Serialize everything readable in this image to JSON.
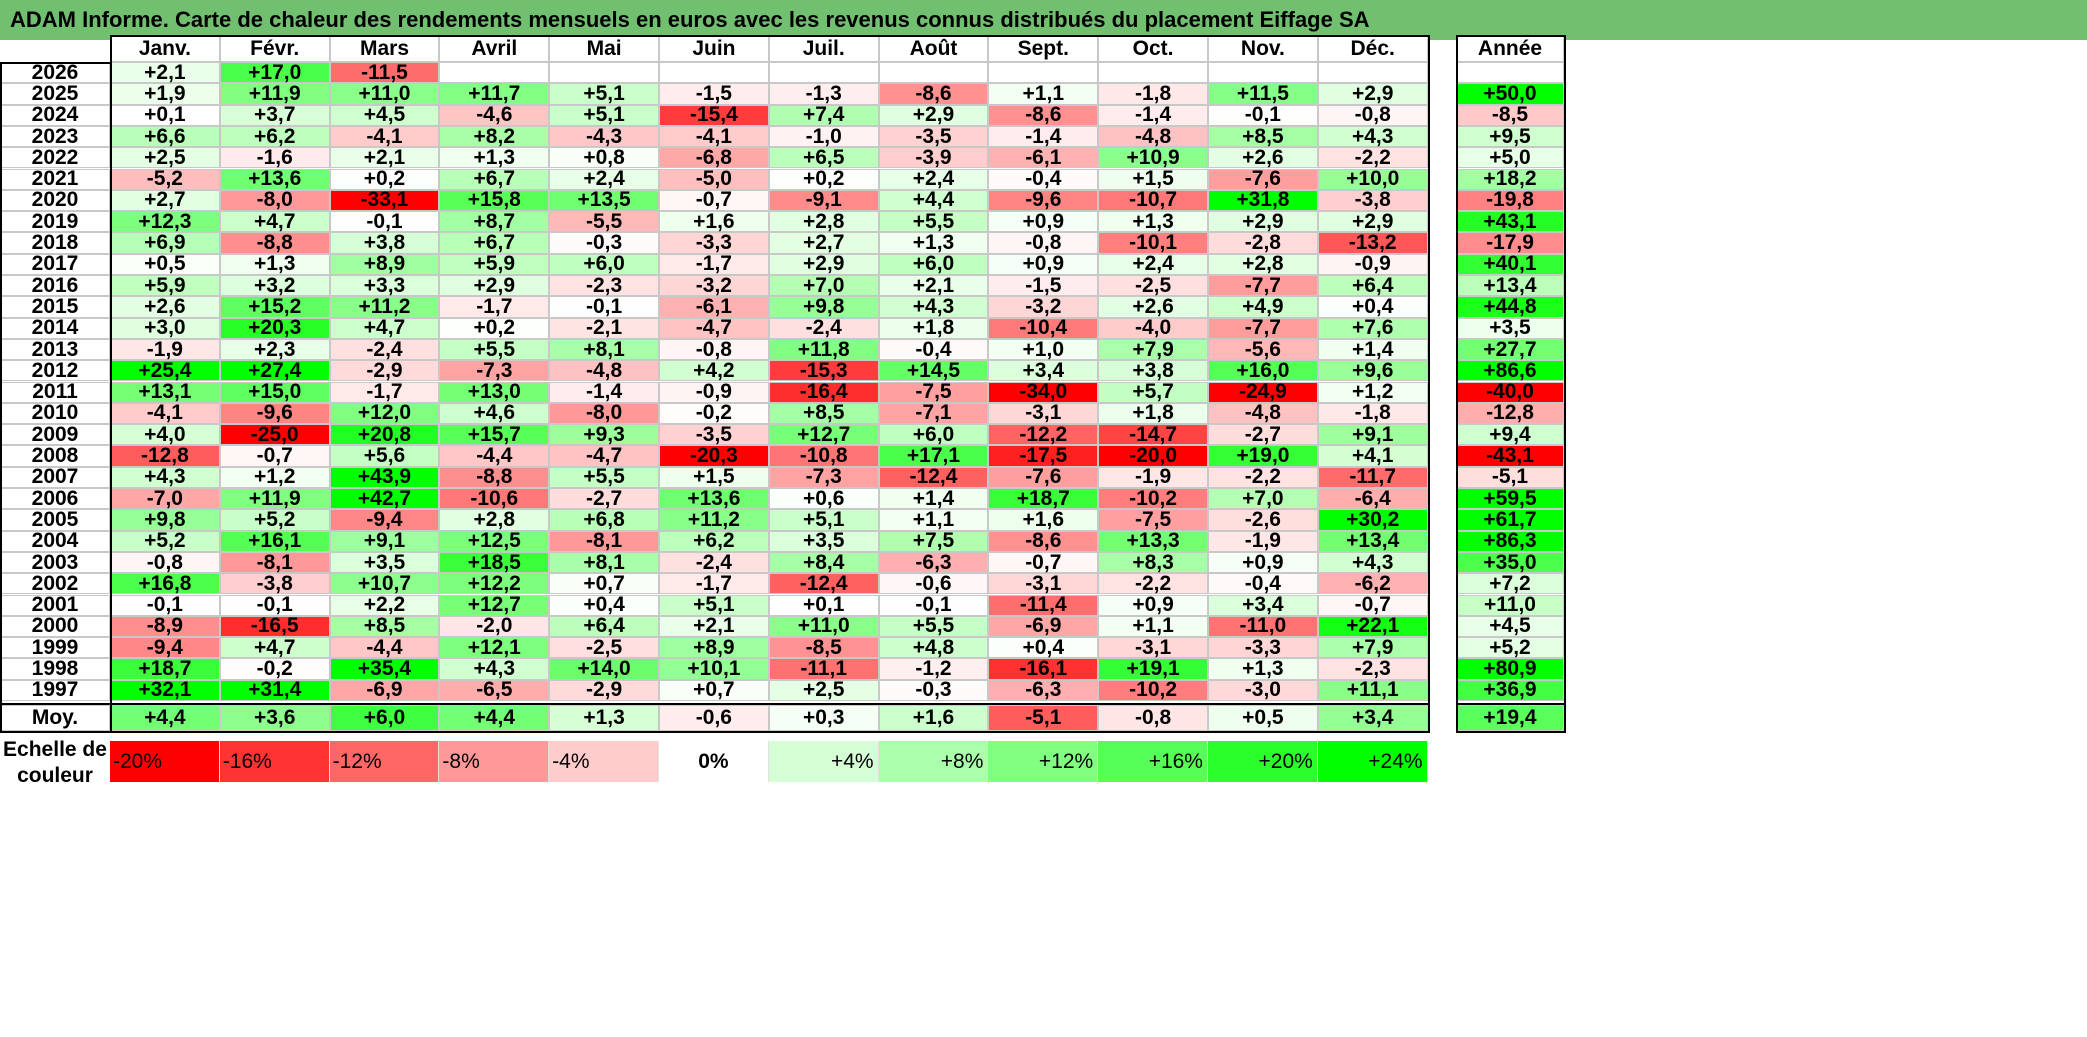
{
  "title": "ADAM Informe. Carte de chaleur des rendements mensuels en euros avec les revenus connus distribués du placement Eiffage SA",
  "chart_data": {
    "type": "heatmap",
    "title": "ADAM Informe. Carte de chaleur des rendements mensuels en euros avec les revenus connus distribués du placement Eiffage SA",
    "columns": [
      "Janv.",
      "Févr.",
      "Mars",
      "Avril",
      "Mai",
      "Juin",
      "Juil.",
      "Août",
      "Sept.",
      "Oct.",
      "Nov.",
      "Déc."
    ],
    "year_column_label": "Année",
    "rows": [
      {
        "year": "2026",
        "months": [
          "+2,1",
          "+17,0",
          "-11,5",
          "",
          "",
          "",
          "",
          "",
          "",
          "",
          "",
          ""
        ],
        "annual": ""
      },
      {
        "year": "2025",
        "months": [
          "+1,9",
          "+11,9",
          "+11,0",
          "+11,7",
          "+5,1",
          "-1,5",
          "-1,3",
          "-8,6",
          "+1,1",
          "-1,8",
          "+11,5",
          "+2,9"
        ],
        "annual": "+50,0"
      },
      {
        "year": "2024",
        "months": [
          "+0,1",
          "+3,7",
          "+4,5",
          "-4,6",
          "+5,1",
          "-15,4",
          "+7,4",
          "+2,9",
          "-8,6",
          "-1,4",
          "-0,1",
          "-0,8"
        ],
        "annual": "-8,5"
      },
      {
        "year": "2023",
        "months": [
          "+6,6",
          "+6,2",
          "-4,1",
          "+8,2",
          "-4,3",
          "-4,1",
          "-1,0",
          "-3,5",
          "-1,4",
          "-4,8",
          "+8,5",
          "+4,3"
        ],
        "annual": "+9,5"
      },
      {
        "year": "2022",
        "months": [
          "+2,5",
          "-1,6",
          "+2,1",
          "+1,3",
          "+0,8",
          "-6,8",
          "+6,5",
          "-3,9",
          "-6,1",
          "+10,9",
          "+2,6",
          "-2,2"
        ],
        "annual": "+5,0"
      },
      {
        "year": "2021",
        "months": [
          "-5,2",
          "+13,6",
          "+0,2",
          "+6,7",
          "+2,4",
          "-5,0",
          "+0,2",
          "+2,4",
          "-0,4",
          "+1,5",
          "-7,6",
          "+10,0"
        ],
        "annual": "+18,2"
      },
      {
        "year": "2020",
        "months": [
          "+2,7",
          "-8,0",
          "-33,1",
          "+15,8",
          "+13,5",
          "-0,7",
          "-9,1",
          "+4,4",
          "-9,6",
          "-10,7",
          "+31,8",
          "-3,8"
        ],
        "annual": "-19,8"
      },
      {
        "year": "2019",
        "months": [
          "+12,3",
          "+4,7",
          "-0,1",
          "+8,7",
          "-5,5",
          "+1,6",
          "+2,8",
          "+5,5",
          "+0,9",
          "+1,3",
          "+2,9",
          "+2,9"
        ],
        "annual": "+43,1"
      },
      {
        "year": "2018",
        "months": [
          "+6,9",
          "-8,8",
          "+3,8",
          "+6,7",
          "-0,3",
          "-3,3",
          "+2,7",
          "+1,3",
          "-0,8",
          "-10,1",
          "-2,8",
          "-13,2"
        ],
        "annual": "-17,9"
      },
      {
        "year": "2017",
        "months": [
          "+0,5",
          "+1,3",
          "+8,9",
          "+5,9",
          "+6,0",
          "-1,7",
          "+2,9",
          "+6,0",
          "+0,9",
          "+2,4",
          "+2,8",
          "-0,9"
        ],
        "annual": "+40,1"
      },
      {
        "year": "2016",
        "months": [
          "+5,9",
          "+3,2",
          "+3,3",
          "+2,9",
          "-2,3",
          "-3,2",
          "+7,0",
          "+2,1",
          "-1,5",
          "-2,5",
          "-7,7",
          "+6,4"
        ],
        "annual": "+13,4"
      },
      {
        "year": "2015",
        "months": [
          "+2,6",
          "+15,2",
          "+11,2",
          "-1,7",
          "-0,1",
          "-6,1",
          "+9,8",
          "+4,3",
          "-3,2",
          "+2,6",
          "+4,9",
          "+0,4"
        ],
        "annual": "+44,8"
      },
      {
        "year": "2014",
        "months": [
          "+3,0",
          "+20,3",
          "+4,7",
          "+0,2",
          "-2,1",
          "-4,7",
          "-2,4",
          "+1,8",
          "-10,4",
          "-4,0",
          "-7,7",
          "+7,6"
        ],
        "annual": "+3,5"
      },
      {
        "year": "2013",
        "months": [
          "-1,9",
          "+2,3",
          "-2,4",
          "+5,5",
          "+8,1",
          "-0,8",
          "+11,8",
          "-0,4",
          "+1,0",
          "+7,9",
          "-5,6",
          "+1,4"
        ],
        "annual": "+27,7"
      },
      {
        "year": "2012",
        "months": [
          "+25,4",
          "+27,4",
          "-2,9",
          "-7,3",
          "-4,8",
          "+4,2",
          "-15,3",
          "+14,5",
          "+3,4",
          "+3,8",
          "+16,0",
          "+9,6"
        ],
        "annual": "+86,6"
      },
      {
        "year": "2011",
        "months": [
          "+13,1",
          "+15,0",
          "-1,7",
          "+13,0",
          "-1,4",
          "-0,9",
          "-16,4",
          "-7,5",
          "-34,0",
          "+5,7",
          "-24,9",
          "+1,2"
        ],
        "annual": "-40,0"
      },
      {
        "year": "2010",
        "months": [
          "-4,1",
          "-9,6",
          "+12,0",
          "+4,6",
          "-8,0",
          "-0,2",
          "+8,5",
          "-7,1",
          "-3,1",
          "+1,8",
          "-4,8",
          "-1,8"
        ],
        "annual": "-12,8"
      },
      {
        "year": "2009",
        "months": [
          "+4,0",
          "-25,0",
          "+20,8",
          "+15,7",
          "+9,3",
          "-3,5",
          "+12,7",
          "+6,0",
          "-12,2",
          "-14,7",
          "-2,7",
          "+9,1"
        ],
        "annual": "+9,4"
      },
      {
        "year": "2008",
        "months": [
          "-12,8",
          "-0,7",
          "+5,6",
          "-4,4",
          "-4,7",
          "-20,3",
          "-10,8",
          "+17,1",
          "-17,5",
          "-20,0",
          "+19,0",
          "+4,1"
        ],
        "annual": "-43,1"
      },
      {
        "year": "2007",
        "months": [
          "+4,3",
          "+1,2",
          "+43,9",
          "-8,8",
          "+5,5",
          "+1,5",
          "-7,3",
          "-12,4",
          "-7,6",
          "-1,9",
          "-2,2",
          "-11,7"
        ],
        "annual": "-5,1"
      },
      {
        "year": "2006",
        "months": [
          "-7,0",
          "+11,9",
          "+42,7",
          "-10,6",
          "-2,7",
          "+13,6",
          "+0,6",
          "+1,4",
          "+18,7",
          "-10,2",
          "+7,0",
          "-6,4"
        ],
        "annual": "+59,5"
      },
      {
        "year": "2005",
        "months": [
          "+9,8",
          "+5,2",
          "-9,4",
          "+2,8",
          "+6,8",
          "+11,2",
          "+5,1",
          "+1,1",
          "+1,6",
          "-7,5",
          "-2,6",
          "+30,2"
        ],
        "annual": "+61,7"
      },
      {
        "year": "2004",
        "months": [
          "+5,2",
          "+16,1",
          "+9,1",
          "+12,5",
          "-8,1",
          "+6,2",
          "+3,5",
          "+7,5",
          "-8,6",
          "+13,3",
          "-1,9",
          "+13,4"
        ],
        "annual": "+86,3"
      },
      {
        "year": "2003",
        "months": [
          "-0,8",
          "-8,1",
          "+3,5",
          "+18,5",
          "+8,1",
          "-2,4",
          "+8,4",
          "-6,3",
          "-0,7",
          "+8,3",
          "+0,9",
          "+4,3"
        ],
        "annual": "+35,0"
      },
      {
        "year": "2002",
        "months": [
          "+16,8",
          "-3,8",
          "+10,7",
          "+12,2",
          "+0,7",
          "-1,7",
          "-12,4",
          "-0,6",
          "-3,1",
          "-2,2",
          "-0,4",
          "-6,2"
        ],
        "annual": "+7,2"
      },
      {
        "year": "2001",
        "months": [
          "-0,1",
          "-0,1",
          "+2,2",
          "+12,7",
          "+0,4",
          "+5,1",
          "+0,1",
          "-0,1",
          "-11,4",
          "+0,9",
          "+3,4",
          "-0,7"
        ],
        "annual": "+11,0"
      },
      {
        "year": "2000",
        "months": [
          "-8,9",
          "-16,5",
          "+8,5",
          "-2,0",
          "+6,4",
          "+2,1",
          "+11,0",
          "+5,5",
          "-6,9",
          "+1,1",
          "-11,0",
          "+22,1"
        ],
        "annual": "+4,5"
      },
      {
        "year": "1999",
        "months": [
          "-9,4",
          "+4,7",
          "-4,4",
          "+12,1",
          "-2,5",
          "+8,9",
          "-8,5",
          "+4,8",
          "+0,4",
          "-3,1",
          "-3,3",
          "+7,9"
        ],
        "annual": "+5,2"
      },
      {
        "year": "1998",
        "months": [
          "+18,7",
          "-0,2",
          "+35,4",
          "+4,3",
          "+14,0",
          "+10,1",
          "-11,1",
          "-1,2",
          "-16,1",
          "+19,1",
          "+1,3",
          "-2,3"
        ],
        "annual": "+80,9"
      },
      {
        "year": "1997",
        "months": [
          "+32,1",
          "+31,4",
          "-6,9",
          "-6,5",
          "-2,9",
          "+0,7",
          "+2,5",
          "-0,3",
          "-6,3",
          "-10,2",
          "-3,0",
          "+11,1"
        ],
        "annual": "+36,9"
      }
    ],
    "average": {
      "label": "Moy.",
      "months": [
        "+4,4",
        "+3,6",
        "+6,0",
        "+4,4",
        "+1,3",
        "-0,6",
        "+0,3",
        "+1,6",
        "-5,1",
        "-0,8",
        "+0,5",
        "+3,4"
      ],
      "annual": "+19,4"
    },
    "color_scale": {
      "label": "Echelle de couleur",
      "stops": [
        "-20%",
        "-16%",
        "-12%",
        "-8%",
        "-4%",
        "0%",
        "+4%",
        "+8%",
        "+12%",
        "+16%",
        "+20%",
        "+24%"
      ],
      "stop_values": [
        -20,
        -16,
        -12,
        -8,
        -4,
        0,
        4,
        8,
        12,
        16,
        20,
        24
      ],
      "negative_color": "#ff0000",
      "neutral_color": "#ffffff",
      "positive_color": "#00ff00"
    }
  }
}
